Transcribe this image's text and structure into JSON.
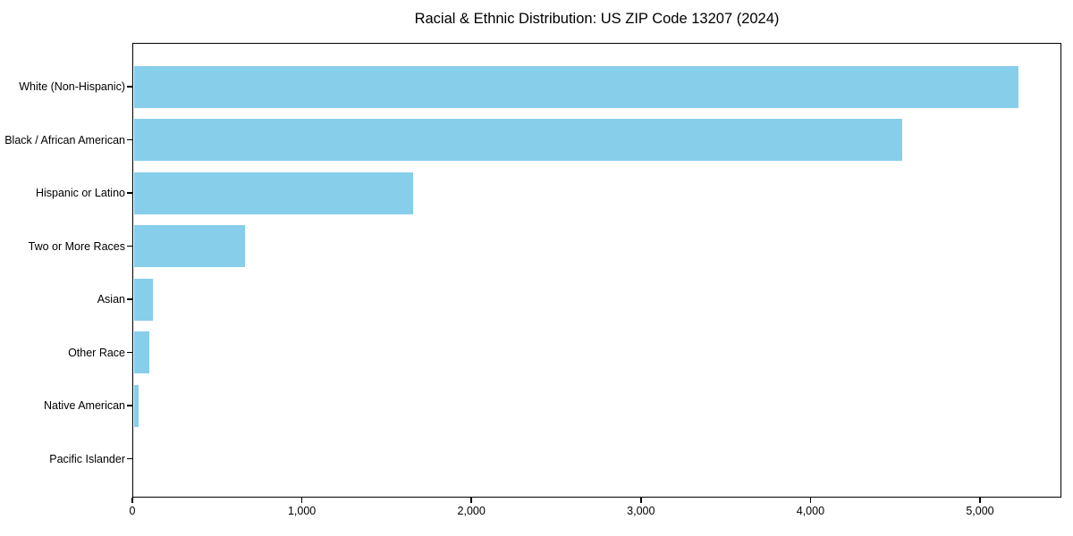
{
  "title": "Racial & Ethnic Distribution: US ZIP Code 13207 (2024)",
  "chart_data": {
    "type": "bar",
    "orientation": "horizontal",
    "title": "Racial & Ethnic Distribution: US ZIP Code 13207 (2024)",
    "categories": [
      "White (Non-Hispanic)",
      "Black / African American",
      "Hispanic or Latino",
      "Two or More Races",
      "Asian",
      "Other Race",
      "Native American",
      "Pacific Islander"
    ],
    "values": [
      5220,
      4535,
      1650,
      655,
      115,
      90,
      30,
      0
    ],
    "xlabel": "",
    "ylabel": "",
    "xlim": [
      0,
      5480
    ],
    "x_ticks": [
      0,
      1000,
      2000,
      3000,
      4000,
      5000
    ],
    "x_tick_labels": [
      "0",
      "1,000",
      "2,000",
      "3,000",
      "4,000",
      "5,000"
    ],
    "bar_color": "#87CEEB",
    "background_color": "#ffffff",
    "spine_color": "#000000",
    "grid": false,
    "legend": null
  }
}
